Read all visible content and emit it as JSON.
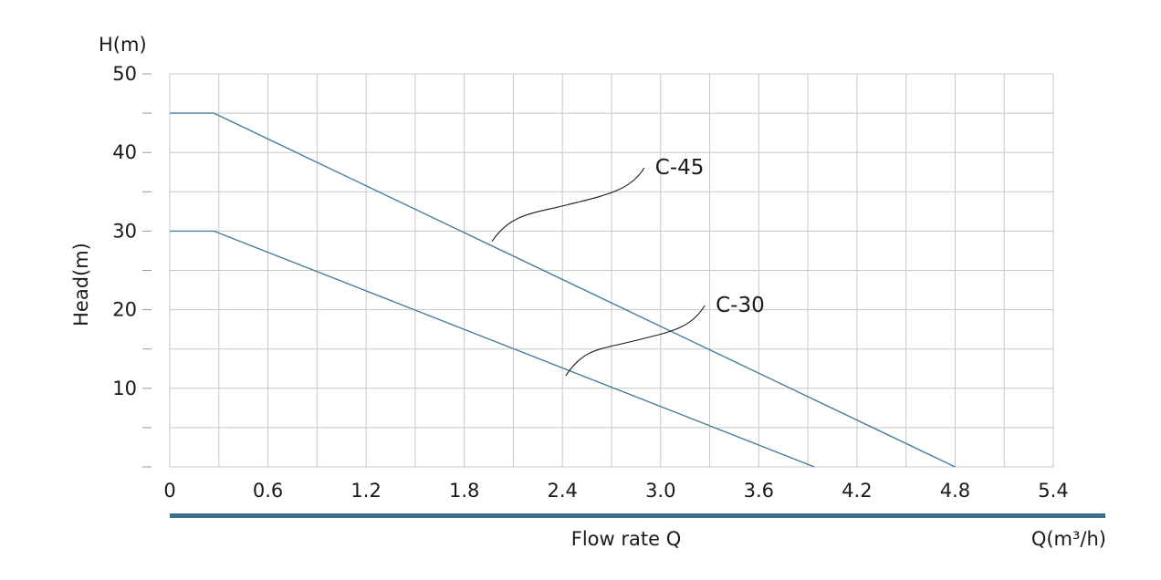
{
  "chart_data": {
    "type": "line",
    "y_unit_label": "H(m)",
    "ylabel": "Head(m)",
    "xlabel": "Flow rate Q",
    "x_unit_label": "Q(m³/h)",
    "xlim": [
      0,
      5.4
    ],
    "ylim": [
      0,
      50
    ],
    "x_ticks": [
      "0",
      "0.6",
      "1.2",
      "1.8",
      "2.4",
      "3.0",
      "3.6",
      "4.2",
      "4.8",
      "5.4"
    ],
    "x_tick_values": [
      0,
      0.6,
      1.2,
      1.8,
      2.4,
      3.0,
      3.6,
      4.2,
      4.8,
      5.4
    ],
    "y_ticks": [
      "10",
      "20",
      "30",
      "40",
      "50"
    ],
    "y_tick_values": [
      10,
      20,
      30,
      40,
      50
    ],
    "grid": true,
    "series": [
      {
        "name": "C-45",
        "points": [
          [
            0,
            45
          ],
          [
            0.27,
            45
          ],
          [
            4.8,
            0
          ]
        ],
        "label_at": [
          3.0,
          38.5
        ],
        "leader_from": [
          1.97,
          28.7
        ]
      },
      {
        "name": "C-30",
        "points": [
          [
            0,
            30
          ],
          [
            0.27,
            30
          ],
          [
            3.94,
            0
          ]
        ],
        "label_at": [
          3.37,
          21.0
        ],
        "leader_from": [
          2.42,
          11.6
        ]
      }
    ],
    "colors": {
      "line": "#4a7f99",
      "grid": "#c8c8c8",
      "axis_bar": "#3d6f8a"
    }
  }
}
